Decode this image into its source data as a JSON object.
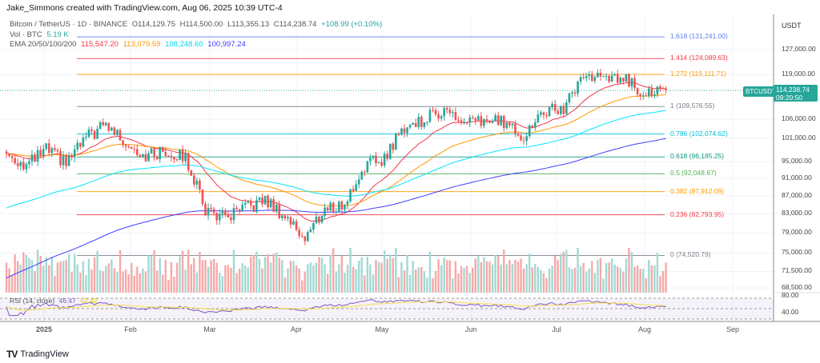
{
  "credit": "Jake_Simmons created with TradingView.com, Aug 06, 2025 10:39 UTC-4",
  "legend": {
    "symbol": "Bitcoin / TetherUS · 1D · BINANCE",
    "o": "O114,129.75",
    "h": "H114,500.00",
    "l": "L113,355.13",
    "c": "C114,238.74",
    "chg": "+108.99 (+0.10%)",
    "vol_label": "Vol · BTC",
    "vol_value": "5.19 K",
    "ema_label": "EMA 20/50/100/200",
    "ema_values": [
      "115,547.20",
      "113,079.59",
      "108,248.60",
      "100,997.24"
    ]
  },
  "colors": {
    "up": "#26a69a",
    "down": "#ef5350",
    "ema20": "#f23645",
    "ema50": "#ff9800",
    "ema100": "#00e5ff",
    "ema200": "#3d3dff",
    "rsi": "#7e57c2",
    "rsi_ma": "#f5e04a"
  },
  "price_axis": {
    "unit": "USDT",
    "ticks": [
      "127,000.00",
      "119,000.00",
      "106,000.00",
      "101,000.00",
      "95,000.00",
      "91,000.00",
      "87,000.00",
      "83,000.00",
      "79,000.00",
      "75,000.00",
      "71,500.00",
      "68,500.00"
    ],
    "last_price": "114,238.74",
    "countdown": "09:20:50",
    "symbol_tag": "BTCUSDT",
    "rsi_ticks": [
      "80.00",
      "40.00"
    ]
  },
  "time_axis": [
    "2025",
    "Feb",
    "Mar",
    "Apr",
    "May",
    "Jun",
    "Jul",
    "Aug",
    "Sep"
  ],
  "fib_levels": [
    {
      "label": "1.618 (131,241.00)",
      "price": 131241,
      "color": "#5b7cf5"
    },
    {
      "label": "1.414 (124,089.63)",
      "price": 124089.63,
      "color": "#f23645"
    },
    {
      "label": "1.272 (119,111.71)",
      "price": 119111.71,
      "color": "#ff9800"
    },
    {
      "label": "1 (109,576.55)",
      "price": 109576.55,
      "color": "#787b86"
    },
    {
      "label": "0.786 (102,074.62)",
      "price": 102074.62,
      "color": "#00bcd4"
    },
    {
      "label": "0.618 (96,185.25)",
      "price": 96185.25,
      "color": "#089981"
    },
    {
      "label": "0.5 (92,048.67)",
      "price": 92048.67,
      "color": "#4caf50"
    },
    {
      "label": "0.382 (87,912.09)",
      "price": 87912.09,
      "color": "#ff9800"
    },
    {
      "label": "0.236 (82,793.95)",
      "price": 82793.95,
      "color": "#f23645"
    },
    {
      "label": "0 (74,520.79)",
      "price": 74520.79,
      "color": "#787b86"
    }
  ],
  "rsi": {
    "label": "RSI (14, close)",
    "value": "46.47",
    "ma_value": "52.42"
  },
  "chart_data": {
    "type": "candlestick",
    "interval": "1D",
    "scale": "log",
    "ylim": [
      66000,
      135000
    ],
    "weekly_closes_from": "2024-12-16",
    "weekly_closes": [
      97000,
      94000,
      98000,
      94500,
      101000,
      104500,
      100000,
      96500,
      97500,
      96000,
      84000,
      82000,
      84000,
      86000,
      82500,
      78000,
      84000,
      85000,
      94000,
      96000,
      104000,
      106000,
      109000,
      104500,
      105500,
      105500,
      101500,
      108000,
      109000,
      119000,
      117500,
      118000,
      114000,
      114238.74
    ]
  },
  "footer": {
    "brand": "TradingView"
  }
}
